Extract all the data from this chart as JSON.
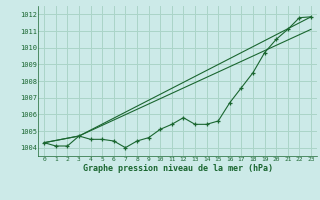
{
  "title": "Graphe pression niveau de la mer (hPa)",
  "bg_color": "#cceae8",
  "grid_color": "#aad4c8",
  "line_color": "#1a6630",
  "xlim": [
    -0.5,
    23.5
  ],
  "ylim": [
    1003.5,
    1012.5
  ],
  "yticks": [
    1004,
    1005,
    1006,
    1007,
    1008,
    1009,
    1010,
    1011,
    1012
  ],
  "xticks": [
    0,
    1,
    2,
    3,
    4,
    5,
    6,
    7,
    8,
    9,
    10,
    11,
    12,
    13,
    14,
    15,
    16,
    17,
    18,
    19,
    20,
    21,
    22,
    23
  ],
  "line1_x": [
    0,
    1,
    2,
    3,
    4,
    5,
    6,
    7,
    8,
    9,
    10,
    11,
    12,
    13,
    14,
    15,
    16,
    17,
    18,
    19,
    20,
    21,
    22,
    23
  ],
  "line1_y": [
    1004.3,
    1004.1,
    1004.1,
    1004.7,
    1004.5,
    1004.5,
    1004.4,
    1004.0,
    1004.4,
    1004.6,
    1005.1,
    1005.4,
    1005.8,
    1005.4,
    1005.4,
    1005.6,
    1006.7,
    1007.6,
    1008.5,
    1009.7,
    1010.5,
    1011.1,
    1011.8,
    1011.85
  ],
  "line2_x": [
    0,
    3,
    23
  ],
  "line2_y": [
    1004.3,
    1004.7,
    1011.85
  ],
  "line3_x": [
    0,
    3,
    23
  ],
  "line3_y": [
    1004.3,
    1004.7,
    1011.1
  ]
}
